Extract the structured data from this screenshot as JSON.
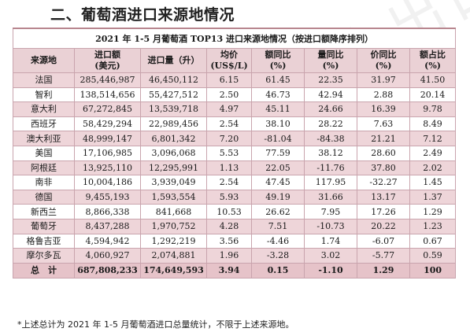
{
  "section_title": "二、葡萄酒进口来源地情况",
  "table": {
    "caption": "2021 年 1-5 月葡萄酒 TOP13 进口来源地情况（按进口额降序排列）",
    "headers": [
      {
        "line1": "来源地",
        "line2": ""
      },
      {
        "line1": "进口额",
        "line2": "(美元)"
      },
      {
        "line1": "进口量（升）",
        "line2": ""
      },
      {
        "line1": "均价",
        "line2": "(US$/L)"
      },
      {
        "line1": "额同比",
        "line2": "(%)"
      },
      {
        "line1": "量同比",
        "line2": "(%)"
      },
      {
        "line1": "价同比",
        "line2": "(%)"
      },
      {
        "line1": "额占比",
        "line2": "(%)"
      }
    ],
    "rows": [
      [
        "法国",
        "285,446,987",
        "46,450,112",
        "6.15",
        "61.45",
        "22.35",
        "31.97",
        "41.50"
      ],
      [
        "智利",
        "138,514,656",
        "55,427,512",
        "2.50",
        "46.73",
        "42.94",
        "2.88",
        "20.14"
      ],
      [
        "意大利",
        "67,272,845",
        "13,539,718",
        "4.97",
        "45.11",
        "24.66",
        "16.39",
        "9.78"
      ],
      [
        "西班牙",
        "58,429,294",
        "22,989,456",
        "2.54",
        "38.10",
        "28.22",
        "7.63",
        "8.49"
      ],
      [
        "澳大利亚",
        "48,999,147",
        "6,801,342",
        "7.20",
        "-81.04",
        "-84.38",
        "21.21",
        "7.12"
      ],
      [
        "美国",
        "17,106,985",
        "3,096,068",
        "5.53",
        "77.59",
        "38.12",
        "28.60",
        "2.49"
      ],
      [
        "阿根廷",
        "13,925,110",
        "12,295,991",
        "1.13",
        "22.05",
        "-11.76",
        "37.80",
        "2.02"
      ],
      [
        "南非",
        "10,004,186",
        "3,939,049",
        "2.54",
        "47.45",
        "117.95",
        "-32.27",
        "1.45"
      ],
      [
        "德国",
        "9,455,193",
        "1,593,554",
        "5.93",
        "49.19",
        "31.66",
        "13.17",
        "1.37"
      ],
      [
        "新西兰",
        "8,866,338",
        "841,668",
        "10.53",
        "26.62",
        "7.95",
        "17.26",
        "1.29"
      ],
      [
        "葡萄牙",
        "8,437,288",
        "1,970,752",
        "4.28",
        "7.51",
        "-10.73",
        "20.22",
        "1.23"
      ],
      [
        "格鲁吉亚",
        "4,594,942",
        "1,292,219",
        "3.56",
        "-4.46",
        "1.74",
        "-6.07",
        "0.67"
      ],
      [
        "摩尔多瓦",
        "4,060,927",
        "2,074,881",
        "1.96",
        "-3.28",
        "3.02",
        "-5.77",
        "0.59"
      ]
    ],
    "total": [
      "总　计",
      "687,808,233",
      "174,649,593",
      "3.94",
      "0.15",
      "-1.10",
      "1.29",
      "100"
    ]
  },
  "footnote": "*上述总计为 2021 年 1-5 月葡萄酒进口总量统计，不限于上述来源地。",
  "colors": {
    "header_bg": "#ead1d5",
    "stripe_bg": "#eed5d9",
    "total_bg": "#e6c3c9",
    "border": "#c9a4ad"
  }
}
